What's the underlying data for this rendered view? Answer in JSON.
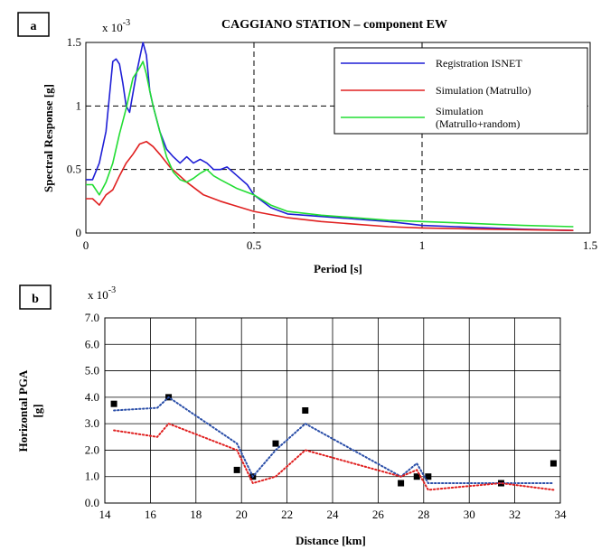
{
  "panels": [
    {
      "letter": "a",
      "multiplier_base": "x 10",
      "multiplier_exp": "-3",
      "chart_data": {
        "type": "line",
        "title": "CAGGIANO STATION – component EW",
        "xlabel": "Period [s]",
        "ylabel": "Spectral Response [g]",
        "xlim": [
          0,
          1.5
        ],
        "ylim": [
          0,
          1.5
        ],
        "y_unit_scale": "x 10^-3",
        "x_ticks": [
          0,
          0.5,
          1,
          1.5
        ],
        "x_tick_labels": [
          "0",
          "0.5",
          "1",
          "1.5"
        ],
        "y_ticks": [
          0,
          0.5,
          1,
          1.5
        ],
        "y_tick_labels": [
          "0",
          "0.5",
          "1",
          "1.5"
        ],
        "grid": "dashed at 0.5 and 1 on both axes",
        "legend_position": "top-right",
        "series": [
          {
            "name": "Registration ISNET",
            "color": "#1f1fd6",
            "x": [
              0,
              0.02,
              0.04,
              0.06,
              0.08,
              0.09,
              0.1,
              0.11,
              0.12,
              0.13,
              0.15,
              0.17,
              0.18,
              0.19,
              0.2,
              0.22,
              0.24,
              0.26,
              0.28,
              0.3,
              0.32,
              0.34,
              0.36,
              0.38,
              0.4,
              0.42,
              0.45,
              0.48,
              0.5,
              0.55,
              0.6,
              0.7,
              0.8,
              0.9,
              1.0,
              1.1,
              1.2,
              1.3,
              1.45
            ],
            "values": [
              0.42,
              0.42,
              0.55,
              0.8,
              1.35,
              1.37,
              1.33,
              1.18,
              1.0,
              0.95,
              1.25,
              1.5,
              1.4,
              1.12,
              1.0,
              0.8,
              0.66,
              0.6,
              0.55,
              0.6,
              0.55,
              0.58,
              0.55,
              0.5,
              0.5,
              0.52,
              0.45,
              0.38,
              0.3,
              0.2,
              0.15,
              0.13,
              0.11,
              0.09,
              0.06,
              0.05,
              0.04,
              0.03,
              0.02
            ]
          },
          {
            "name": "Simulation (Matrullo)",
            "color": "#e02020",
            "x": [
              0,
              0.02,
              0.04,
              0.06,
              0.08,
              0.1,
              0.12,
              0.14,
              0.16,
              0.18,
              0.2,
              0.22,
              0.25,
              0.3,
              0.35,
              0.4,
              0.45,
              0.5,
              0.6,
              0.7,
              0.8,
              0.9,
              1.0,
              1.2,
              1.45
            ],
            "values": [
              0.27,
              0.27,
              0.22,
              0.3,
              0.34,
              0.45,
              0.55,
              0.62,
              0.7,
              0.72,
              0.68,
              0.62,
              0.52,
              0.4,
              0.3,
              0.25,
              0.21,
              0.17,
              0.12,
              0.09,
              0.07,
              0.05,
              0.04,
              0.03,
              0.02
            ]
          },
          {
            "name": "Simulation (Matrullo+random)",
            "color": "#22dd33",
            "x": [
              0,
              0.02,
              0.04,
              0.06,
              0.08,
              0.1,
              0.12,
              0.14,
              0.16,
              0.17,
              0.18,
              0.19,
              0.2,
              0.22,
              0.24,
              0.26,
              0.28,
              0.3,
              0.32,
              0.34,
              0.36,
              0.38,
              0.4,
              0.45,
              0.5,
              0.55,
              0.6,
              0.7,
              0.8,
              0.9,
              1.0,
              1.1,
              1.2,
              1.3,
              1.45
            ],
            "values": [
              0.38,
              0.38,
              0.3,
              0.4,
              0.55,
              0.78,
              0.98,
              1.22,
              1.3,
              1.35,
              1.25,
              1.12,
              1.0,
              0.8,
              0.6,
              0.48,
              0.42,
              0.4,
              0.43,
              0.47,
              0.5,
              0.45,
              0.42,
              0.35,
              0.3,
              0.22,
              0.17,
              0.14,
              0.12,
              0.1,
              0.09,
              0.08,
              0.07,
              0.06,
              0.05
            ]
          }
        ],
        "legend_entries": [
          [
            "Registration ISNET"
          ],
          [
            "Simulation (Matrullo)"
          ],
          [
            "Simulation",
            "(Matrullo+random)"
          ]
        ]
      }
    },
    {
      "letter": "b",
      "multiplier_base": "x 10",
      "multiplier_exp": "-3",
      "chart_data": {
        "type": "scatter",
        "xlabel": "Distance [km]",
        "ylabel_lines": [
          "Horizontal PGA",
          "[g]"
        ],
        "xlim": [
          14,
          34
        ],
        "ylim": [
          0,
          7
        ],
        "y_unit_scale": "x 10^-3",
        "x_ticks": [
          14,
          16,
          18,
          20,
          22,
          24,
          26,
          28,
          30,
          32,
          34
        ],
        "x_tick_labels": [
          "14",
          "16",
          "18",
          "20",
          "22",
          "24",
          "26",
          "28",
          "30",
          "32",
          "34"
        ],
        "y_ticks": [
          0,
          1,
          2,
          3,
          4,
          5,
          6,
          7
        ],
        "y_tick_labels": [
          "0.0",
          "1.0",
          "2.0",
          "3.0",
          "4.0",
          "5.0",
          "6.0",
          "7.0"
        ],
        "grid": "solid grid at every tick",
        "series": [
          {
            "kind": "markers",
            "color": "#000000",
            "x": [
              14.4,
              16.8,
              19.8,
              20.5,
              21.5,
              22.8,
              27.0,
              27.7,
              28.2,
              31.4,
              33.7
            ],
            "values": [
              3.75,
              4.0,
              1.25,
              1.0,
              2.25,
              3.5,
              0.75,
              1.0,
              1.0,
              0.75,
              1.5
            ]
          },
          {
            "kind": "dotted-line",
            "color": "#2a4ea8",
            "x": [
              14.4,
              16.3,
              16.8,
              19.8,
              20.5,
              21.5,
              22.8,
              27.0,
              27.7,
              28.2,
              31.4,
              33.7
            ],
            "values": [
              3.5,
              3.6,
              4.0,
              2.25,
              1.0,
              2.0,
              3.0,
              1.0,
              1.5,
              0.75,
              0.75,
              0.75
            ]
          },
          {
            "kind": "dotted-line",
            "color": "#e02020",
            "x": [
              14.4,
              16.3,
              16.8,
              19.8,
              20.5,
              21.5,
              22.8,
              27.0,
              27.7,
              28.2,
              31.4,
              33.7
            ],
            "values": [
              2.75,
              2.5,
              3.0,
              2.0,
              0.75,
              1.0,
              2.0,
              1.0,
              1.25,
              0.5,
              0.75,
              0.5
            ]
          }
        ]
      }
    }
  ]
}
